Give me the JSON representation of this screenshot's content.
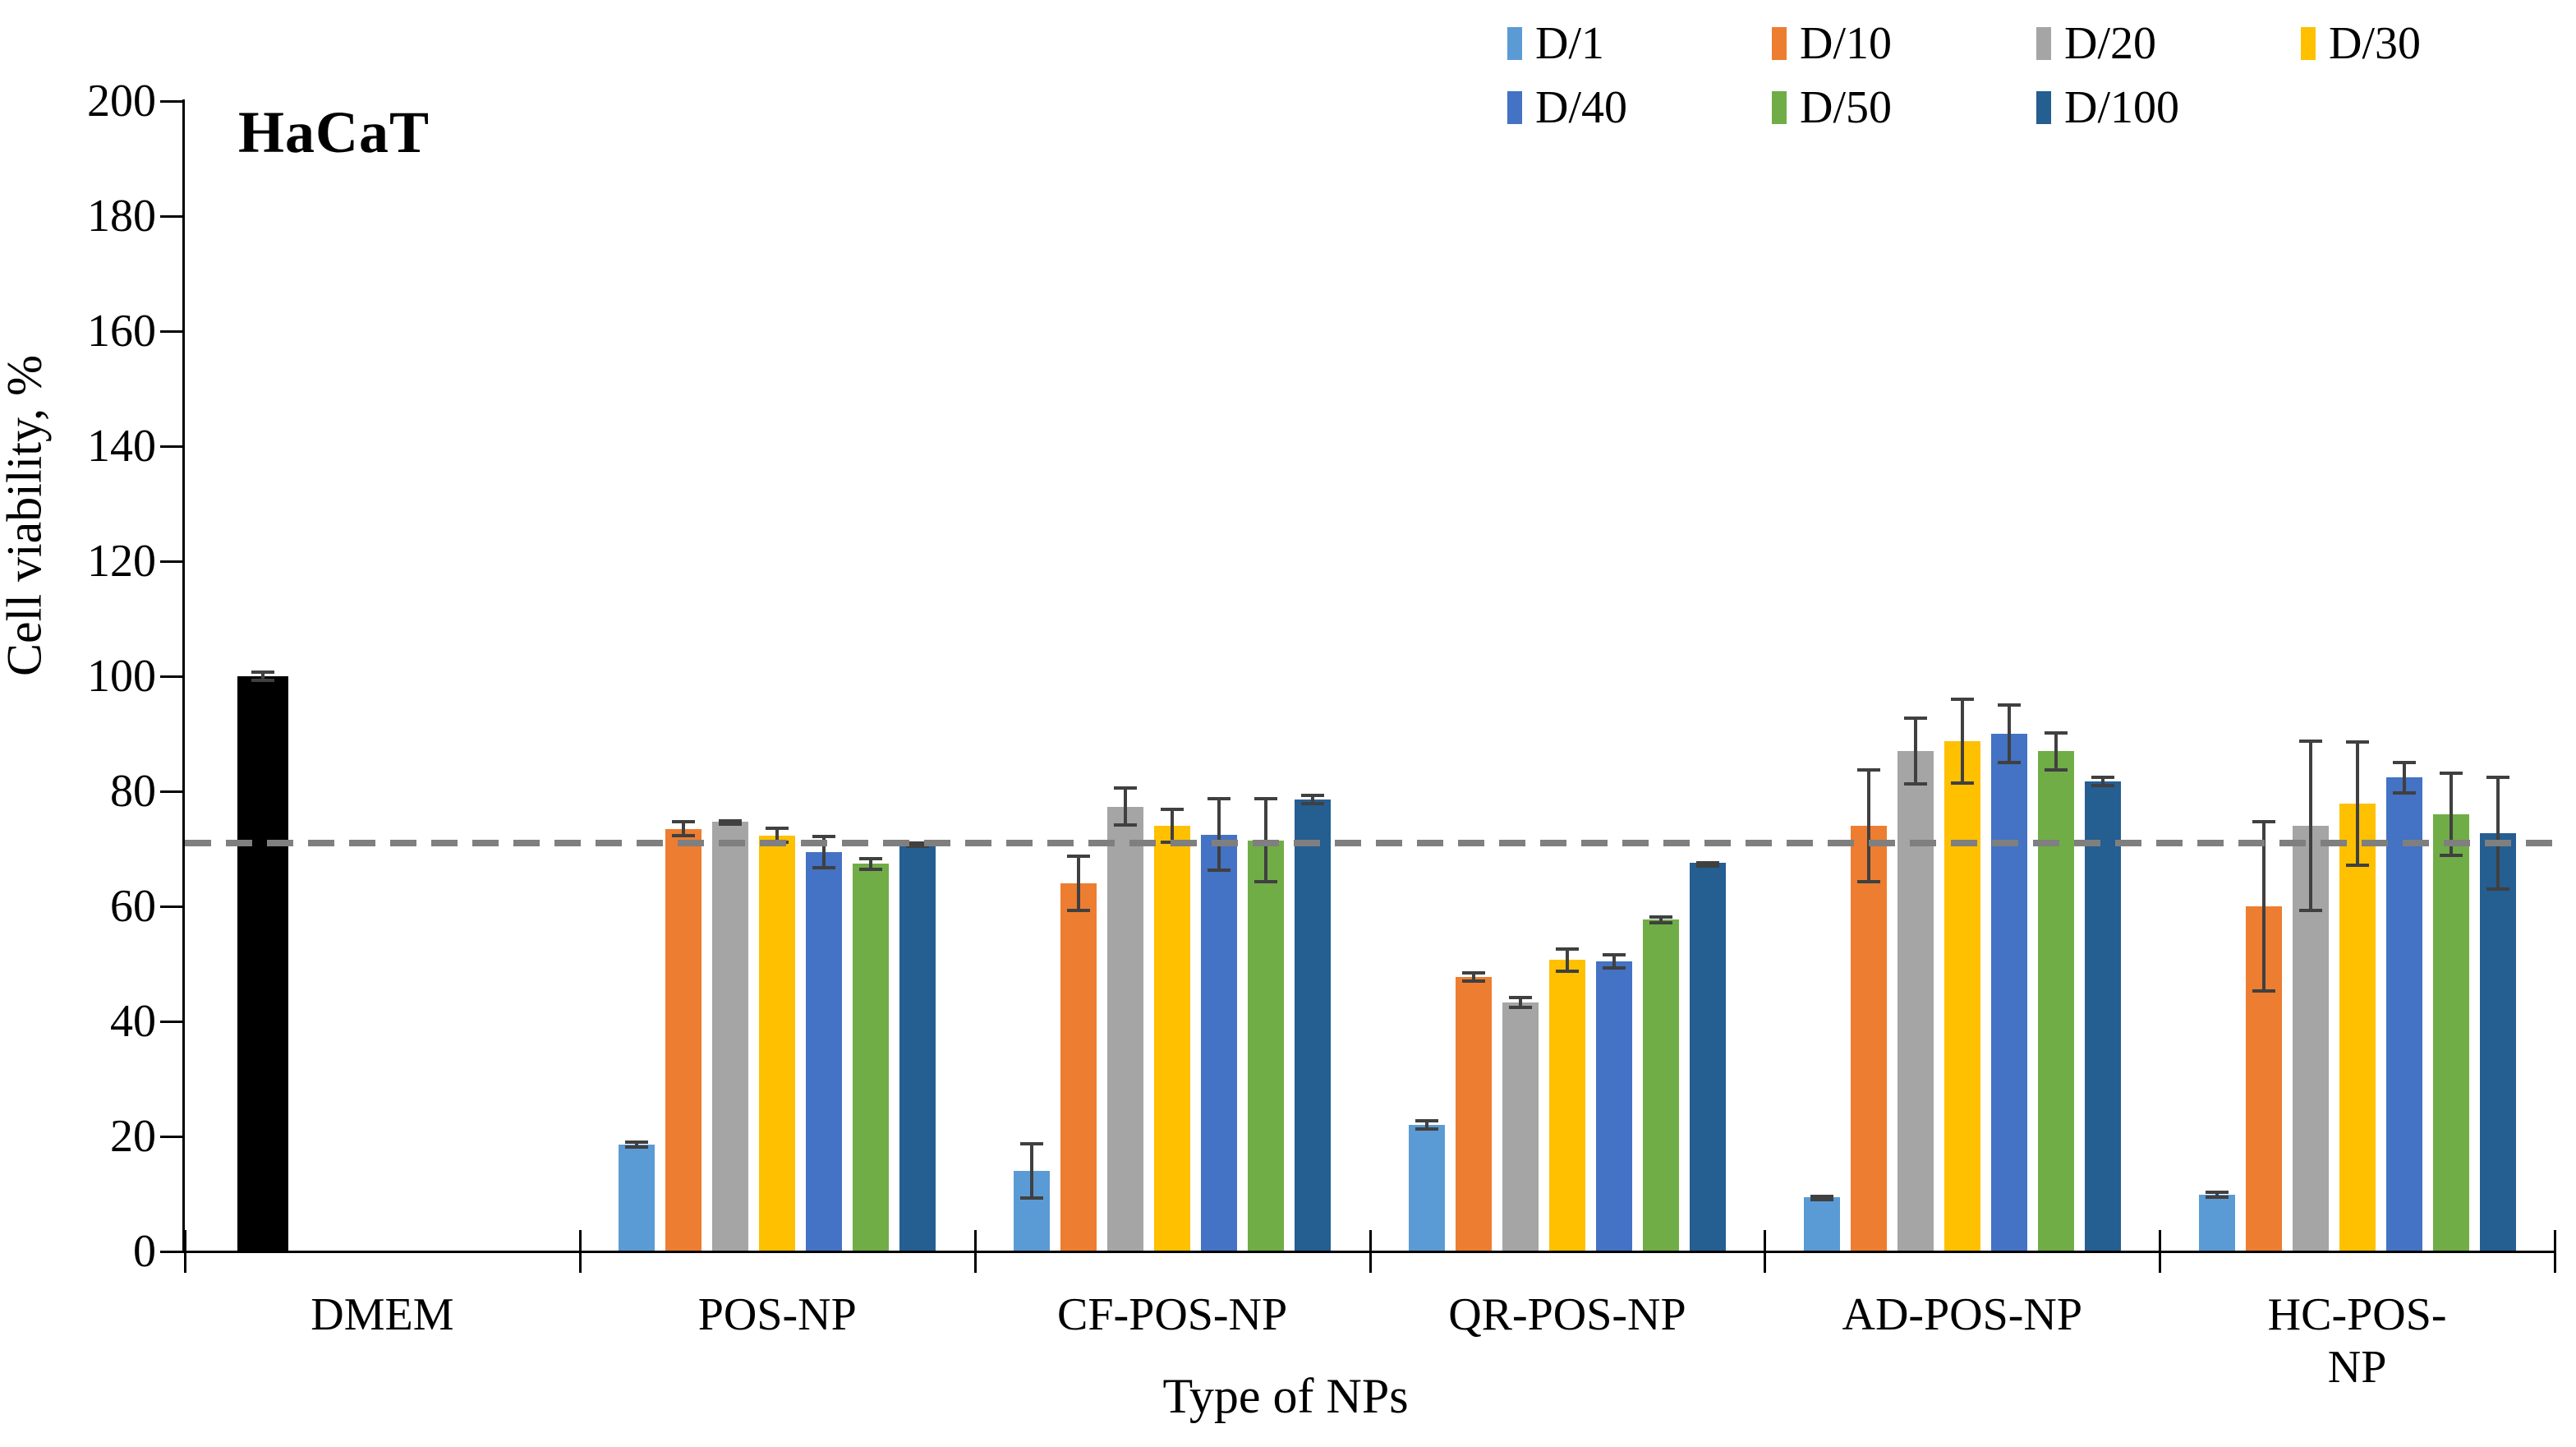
{
  "title": "HaCaT",
  "y_axis": {
    "label": "Cell viability, %",
    "min": 0,
    "max": 200,
    "step": 20,
    "tick_labels": [
      "0",
      "20",
      "40",
      "60",
      "80",
      "100",
      "120",
      "140",
      "160",
      "180",
      "200"
    ]
  },
  "x_axis": {
    "label": "Type of NPs"
  },
  "legend": [
    {
      "label": "D/1",
      "color": "#5B9BD5"
    },
    {
      "label": "D/10",
      "color": "#ED7D31"
    },
    {
      "label": "D/20",
      "color": "#A5A5A5"
    },
    {
      "label": "D/30",
      "color": "#FFC000"
    },
    {
      "label": "D/40",
      "color": "#4472C4"
    },
    {
      "label": "D/50",
      "color": "#70AD47"
    },
    {
      "label": "D/100",
      "color": "#255E91"
    }
  ],
  "threshold_line": {
    "value": 71,
    "color": "#7F7F7F",
    "style": "dashed"
  },
  "chart_data": {
    "type": "bar",
    "title": "HaCaT",
    "xlabel": "Type of NPs",
    "ylabel": "Cell viability, %",
    "ylim": [
      0,
      200
    ],
    "grid": false,
    "legend_position": "top-right",
    "categories": [
      "DMEM",
      "POS-NP",
      "CF-POS-NP",
      "QR-POS-NP",
      "AD-POS-NP",
      "HC-POS-NP"
    ],
    "control_series": {
      "name": "DMEM control",
      "color": "#000000",
      "in_legend": false,
      "values": [
        100,
        null,
        null,
        null,
        null,
        null
      ],
      "errors": [
        1,
        null,
        null,
        null,
        null,
        null
      ]
    },
    "series": [
      {
        "name": "D/1",
        "color": "#5B9BD5",
        "values": [
          null,
          18.6,
          14.0,
          22.0,
          9.4,
          9.9
        ],
        "errors": [
          null,
          0.7,
          5.0,
          1.0,
          0.5,
          0.7
        ]
      },
      {
        "name": "D/10",
        "color": "#ED7D31",
        "values": [
          null,
          73.5,
          64.0,
          47.7,
          74.0,
          60.0
        ],
        "errors": [
          null,
          1.5,
          5.0,
          1.0,
          10.0,
          15.0
        ]
      },
      {
        "name": "D/20",
        "color": "#A5A5A5",
        "values": [
          null,
          74.7,
          77.3,
          43.3,
          87.0,
          74.0
        ],
        "errors": [
          null,
          0.5,
          3.5,
          1.1,
          6.0,
          15.0
        ]
      },
      {
        "name": "D/30",
        "color": "#FFC000",
        "values": [
          null,
          72.3,
          74.0,
          50.7,
          88.7,
          77.9
        ],
        "errors": [
          null,
          1.5,
          3.2,
          2.2,
          7.6,
          11.0
        ]
      },
      {
        "name": "D/40",
        "color": "#4472C4",
        "values": [
          null,
          69.4,
          72.5,
          50.4,
          90.0,
          82.4
        ],
        "errors": [
          null,
          3.0,
          6.5,
          1.4,
          5.3,
          2.9
        ]
      },
      {
        "name": "D/50",
        "color": "#70AD47",
        "values": [
          null,
          67.4,
          71.5,
          57.7,
          87.0,
          76.0
        ],
        "errors": [
          null,
          1.2,
          7.5,
          0.8,
          3.5,
          7.4
        ]
      },
      {
        "name": "D/100",
        "color": "#255E91",
        "values": [
          null,
          70.8,
          78.6,
          67.6,
          81.7,
          72.7
        ],
        "errors": [
          null,
          0.5,
          1.0,
          0.3,
          1.0,
          10.0
        ]
      }
    ]
  }
}
